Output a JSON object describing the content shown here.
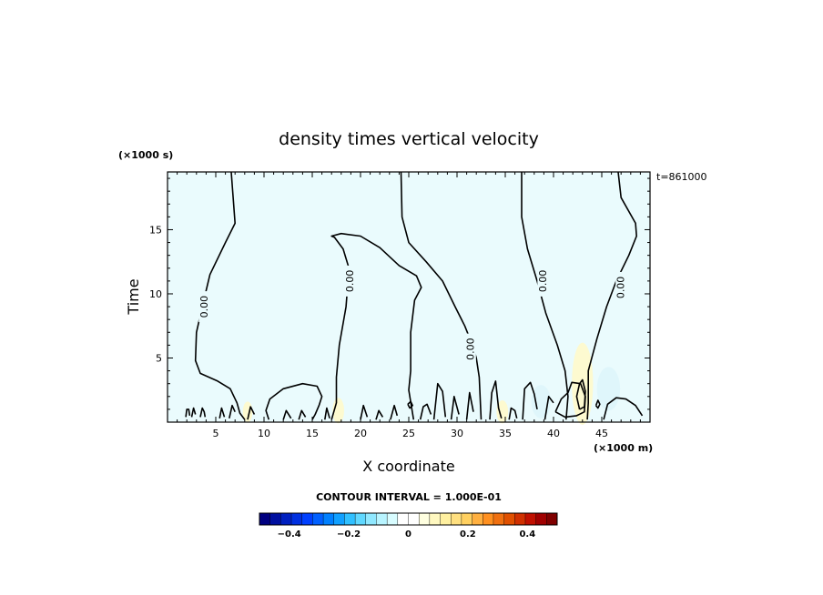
{
  "chart_data": {
    "type": "heatmap",
    "title": "density times vertical velocity",
    "xlabel": "X coordinate",
    "ylabel": "Time",
    "x_units": "(×1000 m)",
    "y_units": "(×1000 s)",
    "time_stamp": "t=861000",
    "xlim": [
      0,
      50
    ],
    "ylim": [
      0,
      19.5
    ],
    "x_ticks": [
      5,
      10,
      15,
      20,
      25,
      30,
      35,
      40,
      45
    ],
    "y_ticks": [
      5,
      10,
      15
    ],
    "contour_label": "0.00",
    "contour_interval_text": "CONTOUR INTERVAL = 1.000E-01",
    "colorbar": {
      "range": [
        -0.5,
        0.5
      ],
      "ticks": [
        -0.4,
        -0.2,
        0,
        0.2,
        0.4
      ],
      "tick_labels": [
        "−0.4",
        "−0.2",
        "0",
        "0.2",
        "0.4"
      ],
      "colors": [
        "#000080",
        "#0010a0",
        "#0020c0",
        "#0030e0",
        "#0040ff",
        "#0060ff",
        "#0080ff",
        "#10a0ff",
        "#30c0ff",
        "#60d8ff",
        "#90e8ff",
        "#b8f4ff",
        "#d8fcff",
        "#ffffff",
        "#ffffff",
        "#ffffe0",
        "#fff8c0",
        "#fff0a0",
        "#ffe080",
        "#ffd060",
        "#ffb040",
        "#ff9020",
        "#f07010",
        "#e05000",
        "#d03000",
        "#c01000",
        "#a00000",
        "#800000"
      ]
    },
    "fill_color_positive": "#fdfad0",
    "fill_color_negative": "#eafbfd",
    "zero_contours": [
      [
        [
          6.6,
          19.5
        ],
        [
          6.8,
          17.5
        ],
        [
          7,
          15.5
        ],
        [
          6,
          14
        ],
        [
          4.4,
          11.5
        ],
        [
          3.6,
          9
        ],
        [
          3.0,
          7.0
        ],
        [
          2.9,
          4.8
        ],
        [
          3.4,
          3.8
        ],
        [
          5.2,
          3.2
        ],
        [
          6.5,
          2.6
        ],
        [
          7.2,
          1.5
        ],
        [
          7.5,
          0.7
        ],
        [
          8,
          0.2
        ]
      ],
      [
        [
          17,
          0.2
        ],
        [
          17.5,
          1.5
        ],
        [
          17.5,
          3.5
        ],
        [
          17.8,
          6
        ],
        [
          18.5,
          9
        ],
        [
          18.8,
          12
        ],
        [
          18.2,
          13.5
        ],
        [
          17.3,
          14.4
        ],
        [
          17,
          14.5
        ],
        [
          18,
          14.7
        ],
        [
          20,
          14.5
        ],
        [
          22,
          13.6
        ],
        [
          24,
          12.2
        ],
        [
          25.8,
          11.4
        ],
        [
          26.3,
          10.5
        ],
        [
          25.6,
          9.5
        ],
        [
          25.2,
          7
        ],
        [
          25.2,
          4
        ],
        [
          25,
          2.5
        ],
        [
          25.5,
          0.2
        ]
      ],
      [
        [
          24.2,
          19.5
        ],
        [
          24.3,
          16
        ],
        [
          25,
          14
        ],
        [
          26.8,
          12.5
        ],
        [
          28.5,
          11
        ],
        [
          29.8,
          9
        ],
        [
          30.8,
          7.5
        ],
        [
          31.6,
          6
        ],
        [
          32,
          5
        ],
        [
          32.3,
          3.5
        ],
        [
          32.5,
          0.2
        ]
      ],
      [
        [
          36.7,
          19.5
        ],
        [
          36.7,
          16
        ],
        [
          37.3,
          13.5
        ],
        [
          38.3,
          11
        ],
        [
          39.2,
          8.5
        ],
        [
          40.4,
          6
        ],
        [
          41.2,
          4
        ],
        [
          41.5,
          2
        ],
        [
          41.3,
          0.2
        ]
      ],
      [
        [
          46.7,
          19.5
        ],
        [
          47.0,
          17.5
        ],
        [
          48.5,
          15.5
        ],
        [
          48.6,
          14.5
        ],
        [
          47.8,
          13
        ],
        [
          46.5,
          11
        ],
        [
          45.5,
          9
        ],
        [
          44.5,
          6.5
        ],
        [
          43.6,
          4
        ],
        [
          43.6,
          1.5
        ],
        [
          43.5,
          0.2
        ]
      ],
      [
        [
          10.5,
          0.2
        ],
        [
          10.2,
          0.9
        ],
        [
          10.6,
          1.8
        ],
        [
          12,
          2.6
        ],
        [
          14,
          3.0
        ],
        [
          15.5,
          2.8
        ],
        [
          16,
          2.0
        ],
        [
          15.7,
          1.3
        ],
        [
          15.3,
          0.6
        ],
        [
          15,
          0.2
        ]
      ],
      [
        [
          40.2,
          0.8
        ],
        [
          40.8,
          1.8
        ],
        [
          41.5,
          2.3
        ],
        [
          41.9,
          3.1
        ],
        [
          42.8,
          3.0
        ],
        [
          43.3,
          2.0
        ],
        [
          43.2,
          0.8
        ],
        [
          42.4,
          0.5
        ],
        [
          41.2,
          0.4
        ],
        [
          40.2,
          0.8
        ]
      ],
      [
        [
          42.7,
          1.0
        ],
        [
          42.4,
          2.0
        ],
        [
          42.7,
          3.0
        ],
        [
          43.0,
          3.3
        ],
        [
          43.3,
          2.4
        ],
        [
          43.2,
          1.2
        ],
        [
          42.7,
          1.0
        ]
      ],
      [
        [
          1.9,
          0.4
        ],
        [
          2.0,
          1.0
        ],
        [
          2.2,
          1.0
        ],
        [
          2.3,
          0.5
        ]
      ],
      [
        [
          2.5,
          0.4
        ],
        [
          2.7,
          1.1
        ],
        [
          2.9,
          0.6
        ]
      ],
      [
        [
          3.4,
          0.4
        ],
        [
          3.6,
          1.1
        ],
        [
          3.8,
          0.8
        ],
        [
          3.9,
          0.4
        ]
      ],
      [
        [
          5.4,
          0.3
        ],
        [
          5.6,
          1.1
        ],
        [
          5.9,
          0.4
        ]
      ],
      [
        [
          6.4,
          0.3
        ],
        [
          6.7,
          1.3
        ],
        [
          7.0,
          0.8
        ]
      ],
      [
        [
          8.3,
          0.2
        ],
        [
          8.6,
          1.2
        ],
        [
          9.0,
          0.6
        ]
      ],
      [
        [
          12.0,
          0.2
        ],
        [
          12.3,
          0.9
        ],
        [
          12.8,
          0.3
        ]
      ],
      [
        [
          13.6,
          0.2
        ],
        [
          13.9,
          0.9
        ],
        [
          14.3,
          0.4
        ]
      ],
      [
        [
          16.3,
          0.2
        ],
        [
          16.5,
          1.1
        ],
        [
          16.8,
          0.3
        ]
      ],
      [
        [
          20.0,
          0.2
        ],
        [
          20.3,
          1.3
        ],
        [
          20.7,
          0.4
        ]
      ],
      [
        [
          21.6,
          0.2
        ],
        [
          21.9,
          0.9
        ],
        [
          22.3,
          0.4
        ]
      ],
      [
        [
          23.1,
          0.2
        ],
        [
          23.5,
          1.3
        ],
        [
          23.8,
          0.5
        ]
      ],
      [
        [
          26.2,
          0.2
        ],
        [
          26.5,
          1.2
        ],
        [
          26.9,
          1.4
        ],
        [
          27.3,
          0.6
        ]
      ],
      [
        [
          27.6,
          0.2
        ],
        [
          28.0,
          3.0
        ],
        [
          28.5,
          2.4
        ],
        [
          28.8,
          0.4
        ]
      ],
      [
        [
          29.4,
          0.2
        ],
        [
          29.7,
          2.0
        ],
        [
          30.2,
          0.6
        ]
      ],
      [
        [
          31.0,
          0.2
        ],
        [
          31.3,
          2.3
        ],
        [
          31.7,
          0.8
        ]
      ],
      [
        [
          33.4,
          0.2
        ],
        [
          33.6,
          2.3
        ],
        [
          34.0,
          3.2
        ],
        [
          34.3,
          1.1
        ],
        [
          34.6,
          0.3
        ]
      ],
      [
        [
          35.4,
          0.2
        ],
        [
          35.6,
          1.1
        ],
        [
          36.0,
          0.9
        ],
        [
          36.2,
          0.3
        ]
      ],
      [
        [
          36.8,
          0.2
        ],
        [
          37.0,
          2.6
        ],
        [
          37.6,
          3.1
        ],
        [
          38.0,
          2.2
        ],
        [
          38.3,
          1.0
        ]
      ],
      [
        [
          39.1,
          0.2
        ],
        [
          39.5,
          2.0
        ],
        [
          40.0,
          1.5
        ]
      ],
      [
        [
          44.4,
          1.3
        ],
        [
          44.6,
          1.7
        ],
        [
          44.8,
          1.4
        ],
        [
          44.6,
          1.1
        ],
        [
          44.4,
          1.3
        ]
      ],
      [
        [
          45.2,
          0.2
        ],
        [
          45.6,
          1.4
        ],
        [
          46.5,
          1.9
        ],
        [
          47.5,
          1.8
        ],
        [
          48.5,
          1.3
        ],
        [
          49.2,
          0.5
        ]
      ],
      [
        [
          24.9,
          1.4
        ],
        [
          25.2,
          1.6
        ],
        [
          25.4,
          1.3
        ],
        [
          25.1,
          1.1
        ],
        [
          24.9,
          1.4
        ]
      ]
    ],
    "contour_label_positions": [
      [
        3.8,
        9.0
      ],
      [
        18.9,
        11.0
      ],
      [
        31.4,
        5.7
      ],
      [
        38.9,
        11.0
      ],
      [
        47.0,
        10.5
      ]
    ],
    "positive_blobs": [
      [
        43.0,
        3.0,
        1.1,
        3.2
      ],
      [
        17.7,
        0.9,
        0.6,
        1.0
      ],
      [
        34.7,
        0.8,
        0.6,
        0.9
      ],
      [
        8.3,
        0.8,
        0.5,
        0.8
      ]
    ],
    "negative_blobs": [
      [
        45.7,
        2.6,
        1.2,
        1.7
      ],
      [
        38.7,
        1.6,
        1.0,
        1.3
      ]
    ]
  }
}
